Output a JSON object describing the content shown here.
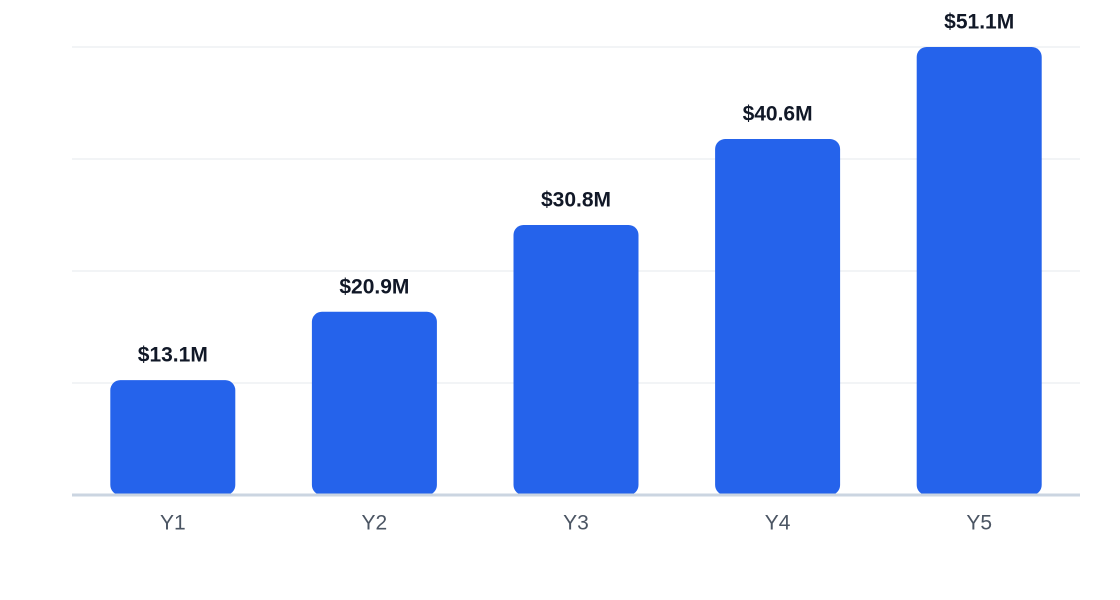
{
  "chart_data": {
    "type": "bar",
    "categories": [
      "Y1",
      "Y2",
      "Y3",
      "Y4",
      "Y5"
    ],
    "values": [
      13.1,
      20.9,
      30.8,
      40.6,
      51.1
    ],
    "value_labels": [
      "$13.1M",
      "$20.9M",
      "$30.8M",
      "$40.6M",
      "$51.1M"
    ],
    "color": "#2563eb",
    "ylim": [
      0,
      51.1
    ],
    "ygrid": [
      0,
      12.775,
      25.55,
      38.325,
      51.1
    ],
    "grid": true
  }
}
